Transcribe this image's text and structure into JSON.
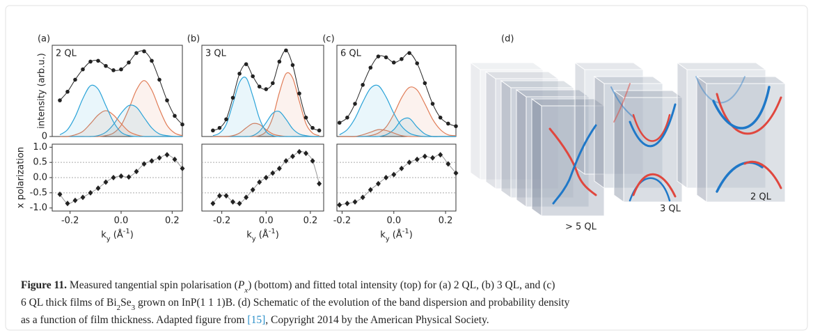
{
  "figure": {
    "schematic": {
      "panel_label": "(d)",
      "labels": [
        "> 5 QL",
        "3 QL",
        "2 QL"
      ]
    },
    "caption": {
      "label": "Figure 11.",
      "lines": [
        [
          " Measured tangential spin polarisation (",
          "P",
          "x",
          ") (bottom) and fitted total intensity (top) for (a) 2 QL, (b) 3 QL, and (c)"
        ],
        [
          "6 QL thick films of Bi",
          "2",
          "Se",
          "3",
          " grown on InP(1 1 1)B. (d) Schematic of the evolution of the band dispersion and probability density"
        ],
        [
          "as a function of film thickness. Adapted figure from ",
          "[15]",
          ", Copyright 2014 by the American Physical Society."
        ]
      ]
    }
  },
  "chart_data": [
    {
      "type": "line",
      "panel_label": "(a)",
      "title": "2 QL",
      "ylabel": "intensity (arb.u.)",
      "x": [
        -0.24,
        -0.21,
        -0.18,
        -0.15,
        -0.12,
        -0.09,
        -0.06,
        -0.03,
        0,
        0.03,
        0.06,
        0.09,
        0.12,
        0.15,
        0.18,
        0.21,
        0.24
      ],
      "xlim": [
        -0.27,
        0.24
      ],
      "ylim": [
        0,
        1.06
      ],
      "yticks": [
        0
      ],
      "series": [
        {
          "color": "#222222",
          "values": [
            0.42,
            0.52,
            0.66,
            0.78,
            0.87,
            0.88,
            0.82,
            0.77,
            0.78,
            0.86,
            0.97,
            0.99,
            0.88,
            0.66,
            0.42,
            0.24,
            0.14
          ]
        },
        {
          "color": "#2aa3d8",
          "values": [
            0.02,
            0.08,
            0.23,
            0.44,
            0.59,
            0.55,
            0.36,
            0.17,
            0.05,
            0.01,
            0,
            0,
            0,
            0,
            0,
            0,
            0
          ]
        },
        {
          "color": "#e07b55",
          "values": [
            0,
            0,
            0.02,
            0.06,
            0.15,
            0.25,
            0.3,
            0.25,
            0.15,
            0.06,
            0.02,
            0,
            0,
            0,
            0,
            0,
            0
          ]
        },
        {
          "color": "#2aa3d8",
          "values": [
            0,
            0,
            0,
            0,
            0,
            0.01,
            0.05,
            0.14,
            0.27,
            0.36,
            0.34,
            0.22,
            0.1,
            0.03,
            0.01,
            0,
            0
          ]
        },
        {
          "color": "#e07b55",
          "values": [
            0,
            0,
            0,
            0,
            0,
            0,
            0.01,
            0.04,
            0.13,
            0.32,
            0.54,
            0.65,
            0.54,
            0.32,
            0.13,
            0.04,
            0.01
          ]
        }
      ]
    },
    {
      "type": "scatter",
      "ylabel": "x polarization",
      "xlabel": [
        "k",
        "y",
        " (Å",
        "-1",
        ")"
      ],
      "x": [
        -0.24,
        -0.21,
        -0.18,
        -0.15,
        -0.12,
        -0.09,
        -0.06,
        -0.03,
        0,
        0.03,
        0.06,
        0.09,
        0.12,
        0.15,
        0.18,
        0.21,
        0.24
      ],
      "values": [
        -0.55,
        -0.85,
        -0.75,
        -0.65,
        -0.5,
        -0.35,
        -0.15,
        0.0,
        0.05,
        0.02,
        0.2,
        0.45,
        0.55,
        0.65,
        0.75,
        0.6,
        0.3
      ],
      "color": "#222222",
      "xlim": [
        -0.27,
        0.24
      ],
      "ylim": [
        -1.1,
        1.1
      ],
      "xticks": [
        -0.2,
        {
          "value": 0,
          "label": "0.0"
        },
        0.2
      ],
      "yticks": [
        {
          "value": 1,
          "label": "1.0"
        },
        0.5,
        {
          "value": 0,
          "label": "0.0"
        },
        -0.5,
        {
          "value": -1,
          "label": "-1.0"
        }
      ]
    },
    {
      "type": "line",
      "panel_label": "(b)",
      "title": "3 QL",
      "x": [
        -0.24,
        -0.21,
        -0.18,
        -0.15,
        -0.12,
        -0.09,
        -0.06,
        -0.03,
        0,
        0.03,
        0.06,
        0.09,
        0.12,
        0.15,
        0.18,
        0.21,
        0.24
      ],
      "xlim": [
        -0.29,
        0.26
      ],
      "ylim": [
        0,
        1.06
      ],
      "series": [
        {
          "color": "#222222",
          "values": [
            0.07,
            0.1,
            0.2,
            0.45,
            0.73,
            0.84,
            0.7,
            0.58,
            0.55,
            0.62,
            0.87,
            1.0,
            0.83,
            0.5,
            0.22,
            0.1,
            0.07
          ]
        },
        {
          "color": "#2aa3d8",
          "values": [
            0.01,
            0.04,
            0.14,
            0.38,
            0.63,
            0.68,
            0.47,
            0.21,
            0.06,
            0.01,
            0,
            0,
            0,
            0,
            0,
            0,
            0
          ]
        },
        {
          "color": "#e07b55",
          "values": [
            0,
            0,
            0,
            0.01,
            0.04,
            0.1,
            0.15,
            0.14,
            0.08,
            0.03,
            0.01,
            0,
            0,
            0,
            0,
            0,
            0
          ]
        },
        {
          "color": "#2aa3d8",
          "values": [
            0,
            0,
            0,
            0,
            0,
            0,
            0.01,
            0.06,
            0.16,
            0.27,
            0.29,
            0.2,
            0.09,
            0.03,
            0.01,
            0,
            0
          ]
        },
        {
          "color": "#e07b55",
          "values": [
            0,
            0,
            0,
            0,
            0,
            0,
            0,
            0.01,
            0.06,
            0.22,
            0.51,
            0.73,
            0.68,
            0.41,
            0.15,
            0.04,
            0.01
          ]
        }
      ]
    },
    {
      "type": "scatter",
      "xlabel": [
        "k",
        "y",
        " (Å",
        "-1",
        ")"
      ],
      "x": [
        -0.24,
        -0.21,
        -0.18,
        -0.15,
        -0.12,
        -0.09,
        -0.06,
        -0.03,
        0,
        0.03,
        0.06,
        0.09,
        0.12,
        0.15,
        0.18,
        0.21,
        0.24
      ],
      "values": [
        -0.85,
        -0.6,
        -0.6,
        -0.8,
        -0.85,
        -0.65,
        -0.4,
        -0.15,
        0.0,
        0.15,
        0.3,
        0.55,
        0.7,
        0.85,
        0.8,
        0.55,
        -0.2
      ],
      "color": "#222222",
      "xlim": [
        -0.29,
        0.26
      ],
      "ylim": [
        -1.1,
        1.1
      ],
      "xticks": [
        -0.2,
        {
          "value": 0,
          "label": "0.0"
        },
        0.2
      ]
    },
    {
      "type": "line",
      "panel_label": "(c)",
      "title": "6 QL",
      "x": [
        -0.21,
        -0.18,
        -0.15,
        -0.12,
        -0.09,
        -0.06,
        -0.03,
        0,
        0.03,
        0.06,
        0.09,
        0.12,
        0.15,
        0.18,
        0.21,
        0.24
      ],
      "xlim": [
        -0.22,
        0.24
      ],
      "ylim": [
        0,
        1.06
      ],
      "series": [
        {
          "color": "#222222",
          "values": [
            0.16,
            0.22,
            0.38,
            0.6,
            0.8,
            0.93,
            0.92,
            0.86,
            0.9,
            0.97,
            0.85,
            0.62,
            0.38,
            0.22,
            0.15,
            0.12
          ]
        },
        {
          "color": "#2aa3d8",
          "values": [
            0.02,
            0.08,
            0.21,
            0.4,
            0.56,
            0.59,
            0.46,
            0.27,
            0.12,
            0.04,
            0.01,
            0,
            0,
            0,
            0,
            0
          ]
        },
        {
          "color": "#e07b55",
          "values": [
            0,
            0,
            0,
            0.02,
            0.05,
            0.08,
            0.07,
            0.04,
            0.01,
            0,
            0,
            0,
            0,
            0,
            0,
            0
          ]
        },
        {
          "color": "#2aa3d8",
          "values": [
            0,
            0,
            0,
            0,
            0,
            0,
            0.02,
            0.08,
            0.19,
            0.21,
            0.11,
            0.03,
            0,
            0,
            0,
            0
          ]
        },
        {
          "color": "#e07b55",
          "values": [
            0,
            0,
            0,
            0,
            0.01,
            0.04,
            0.11,
            0.26,
            0.45,
            0.57,
            0.54,
            0.38,
            0.2,
            0.08,
            0.02,
            0.01
          ]
        }
      ]
    },
    {
      "type": "scatter",
      "xlabel": [
        "k",
        "y",
        " (Å",
        "-1",
        ")"
      ],
      "x": [
        -0.21,
        -0.18,
        -0.15,
        -0.12,
        -0.09,
        -0.06,
        -0.03,
        0,
        0.03,
        0.06,
        0.09,
        0.12,
        0.15,
        0.18,
        0.21,
        0.24
      ],
      "values": [
        -0.9,
        -0.85,
        -0.8,
        -0.65,
        -0.4,
        -0.2,
        0.0,
        0.1,
        0.3,
        0.5,
        0.6,
        0.7,
        0.65,
        0.75,
        0.45,
        0.15
      ],
      "color": "#222222",
      "xlim": [
        -0.22,
        0.24
      ],
      "ylim": [
        -1.1,
        1.1
      ],
      "xticks": [
        -0.2,
        {
          "value": 0,
          "label": "0.0"
        },
        0.2
      ]
    }
  ]
}
